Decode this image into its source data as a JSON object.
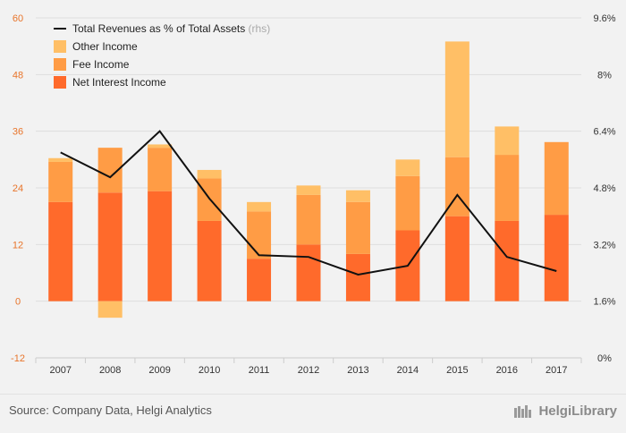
{
  "colors": {
    "net_interest": "#ff6a2b",
    "fee": "#ff9c45",
    "other": "#ffbf66",
    "line": "#111111",
    "left_axis_text": "#e8742a",
    "right_axis_text": "#333333",
    "grid": "#dddddd"
  },
  "chart_data": {
    "type": "bar",
    "stacked": true,
    "categories": [
      "2007",
      "2008",
      "2009",
      "2010",
      "2011",
      "2012",
      "2013",
      "2014",
      "2015",
      "2016",
      "2017"
    ],
    "series": [
      {
        "name": "Net Interest Income",
        "values": [
          21,
          23,
          23.3,
          17,
          9,
          12,
          10,
          15,
          18,
          17,
          18.3
        ]
      },
      {
        "name": "Fee Income",
        "values": [
          8.5,
          9.5,
          9.2,
          9,
          10,
          10.5,
          11,
          11.5,
          12.5,
          14,
          15.4
        ]
      },
      {
        "name": "Other Income",
        "values": [
          0.8,
          -3.5,
          0.7,
          1.8,
          2,
          2,
          2.5,
          3.5,
          24.5,
          6,
          0
        ]
      }
    ],
    "line_series": {
      "name": "Total Revenues as % of Total Assets",
      "axis": "right",
      "values": [
        5.8,
        5.1,
        6.4,
        4.5,
        2.9,
        2.85,
        2.35,
        2.6,
        4.6,
        2.85,
        2.45
      ]
    },
    "y_left": {
      "lim": [
        -12,
        60
      ],
      "ticks": [
        "-12",
        "0",
        "12",
        "24",
        "36",
        "48",
        "60"
      ]
    },
    "y_right": {
      "lim": [
        0,
        9.6
      ],
      "ticks": [
        "0%",
        "1.6%",
        "3.2%",
        "4.8%",
        "6.4%",
        "8%",
        "9.6%"
      ]
    },
    "legend": {
      "placement": "top-left",
      "entries": [
        {
          "label": "Total Revenues as % of Total Assets",
          "suffix": "(rhs)",
          "kind": "line"
        },
        {
          "label": "Other Income",
          "kind": "other"
        },
        {
          "label": "Fee Income",
          "kind": "fee"
        },
        {
          "label": "Net Interest Income",
          "kind": "net_interest"
        }
      ]
    },
    "grid": true
  },
  "footer": {
    "source": "Source: Company Data, Helgi Analytics",
    "brand": "HelgiLibrary"
  }
}
